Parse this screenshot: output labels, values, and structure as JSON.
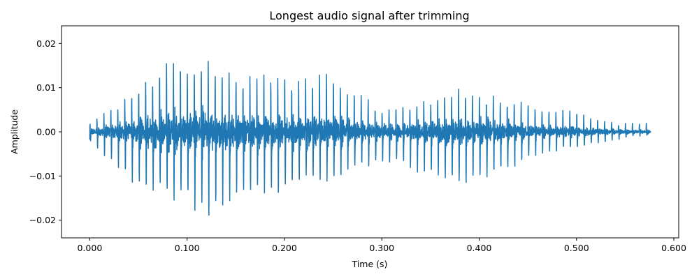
{
  "chart_data": {
    "type": "line",
    "title": "Longest audio signal after trimming",
    "xlabel": "Time (s)",
    "ylabel": "Amplitude",
    "xlim": [
      -0.029,
      0.605
    ],
    "ylim": [
      -0.024,
      0.024
    ],
    "xticks": [
      0.0,
      0.1,
      0.2,
      0.3,
      0.4,
      0.5,
      0.6
    ],
    "xtick_labels": [
      "0.000",
      "0.100",
      "0.200",
      "0.300",
      "0.400",
      "0.500",
      "0.600"
    ],
    "yticks": [
      -0.02,
      -0.01,
      0.0,
      0.01,
      0.02
    ],
    "ytick_labels": [
      "−0.02",
      "−0.01",
      "0.00",
      "0.01",
      "0.02"
    ],
    "grid": false,
    "line_color": "#1f77b4",
    "duration": 0.576,
    "envelope": {
      "t": [
        0.0,
        0.02,
        0.04,
        0.06,
        0.08,
        0.1,
        0.12,
        0.14,
        0.16,
        0.18,
        0.2,
        0.22,
        0.24,
        0.26,
        0.28,
        0.3,
        0.32,
        0.34,
        0.36,
        0.38,
        0.4,
        0.42,
        0.44,
        0.46,
        0.48,
        0.5,
        0.52,
        0.54,
        0.56,
        0.576
      ],
      "upper": [
        0.002,
        0.005,
        0.009,
        0.013,
        0.016,
        0.016,
        0.018,
        0.015,
        0.013,
        0.014,
        0.013,
        0.013,
        0.014,
        0.012,
        0.009,
        0.005,
        0.006,
        0.007,
        0.009,
        0.01,
        0.009,
        0.008,
        0.007,
        0.006,
        0.005,
        0.005,
        0.003,
        0.002,
        0.002,
        0.002
      ],
      "lower": [
        -0.002,
        -0.007,
        -0.011,
        -0.014,
        -0.016,
        -0.017,
        -0.021,
        -0.018,
        -0.015,
        -0.014,
        -0.015,
        -0.013,
        -0.012,
        -0.011,
        -0.009,
        -0.008,
        -0.008,
        -0.01,
        -0.011,
        -0.012,
        -0.012,
        -0.01,
        -0.008,
        -0.006,
        -0.005,
        -0.004,
        -0.003,
        -0.002,
        -0.001,
        -0.001
      ]
    },
    "pitch_hz": 140
  }
}
